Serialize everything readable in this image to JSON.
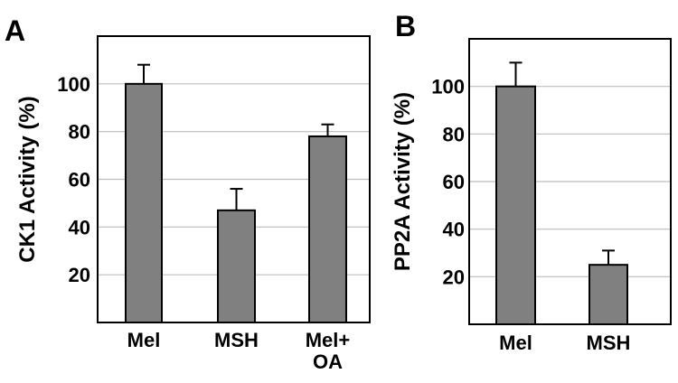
{
  "chart_data": [
    {
      "panel": "A",
      "type": "bar",
      "categories": [
        "Mel",
        "MSH",
        "Mel+\nOA"
      ],
      "values": [
        100,
        47,
        78
      ],
      "error_upper": [
        108,
        56,
        83
      ],
      "ylabel": "CK1 Activity (%)",
      "yticks": [
        20,
        40,
        60,
        80,
        100
      ],
      "ylim": [
        0,
        120
      ],
      "grid": true,
      "bar_color": "#808080"
    },
    {
      "panel": "B",
      "type": "bar",
      "categories": [
        "Mel",
        "MSH"
      ],
      "values": [
        100,
        25
      ],
      "error_upper": [
        110,
        31
      ],
      "ylabel": "PP2A Activity (%)",
      "yticks": [
        20,
        40,
        60,
        80,
        100
      ],
      "ylim": [
        0,
        120
      ],
      "grid": true,
      "bar_color": "#808080"
    }
  ]
}
